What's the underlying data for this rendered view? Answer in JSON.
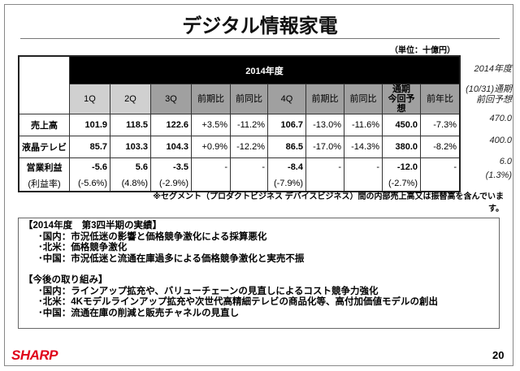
{
  "title": "デジタル情報家電",
  "unit": "（単位：十億円）",
  "table": {
    "year_header": "2014年度",
    "cols": [
      "1Q",
      "2Q",
      "3Q",
      "前期比",
      "前同比",
      "4Q",
      "前期比",
      "前同比",
      "通期\n今回予想",
      "前年比"
    ],
    "rows": [
      {
        "label": "売上高",
        "values": [
          "101.9",
          "118.5",
          "122.6",
          "+3.5%",
          "-11.2%",
          "106.7",
          "-13.0%",
          "-11.6%",
          "450.0",
          "-7.3%"
        ]
      },
      {
        "label": "液晶テレビ",
        "values": [
          "85.7",
          "103.3",
          "104.3",
          "+0.9%",
          "-12.2%",
          "86.5",
          "-17.0%",
          "-14.3%",
          "380.0",
          "-8.2%"
        ]
      },
      {
        "label": "営業利益",
        "values": [
          "-5.6",
          "5.6",
          "-3.5",
          "-",
          "-",
          "-8.4",
          "-",
          "-",
          "-12.0",
          "-"
        ]
      },
      {
        "label": "(利益率)",
        "values": [
          "(-5.6%)",
          "(4.8%)",
          "(-2.9%)",
          "",
          "",
          "(-7.9%)",
          "",
          "",
          "(-2.7%)",
          ""
        ]
      }
    ]
  },
  "side": {
    "header1": "2014年度",
    "header2": "(10/31)通期\n前回予想",
    "values": [
      "470.0",
      "400.0",
      "6.0",
      "(1.3%)"
    ]
  },
  "note": "※セグメント（プロダクトビジネス デバイスビジネス）間の内部売上高又は振替高を含んでいます。",
  "box": {
    "h1": "【2014年度　第3四半期の実績】",
    "l1": [
      "･国内：市況低迷の影響と価格競争激化による採算悪化",
      "･北米：価格競争激化",
      "･中国：市況低迷と流通在庫過多による価格競争激化と実売不振"
    ],
    "h2": "【今後の取り組み】",
    "l2": [
      "･国内：ラインアップ拡充や、バリューチェーンの見直しによるコスト競争力強化",
      "･北米：4Kモデルラインアップ拡充や次世代高精細テレビの商品化等、高付加価値モデルの創出",
      "･中国：流通在庫の削減と販売チャネルの見直し"
    ]
  },
  "logo": "SHARP",
  "page": "20"
}
